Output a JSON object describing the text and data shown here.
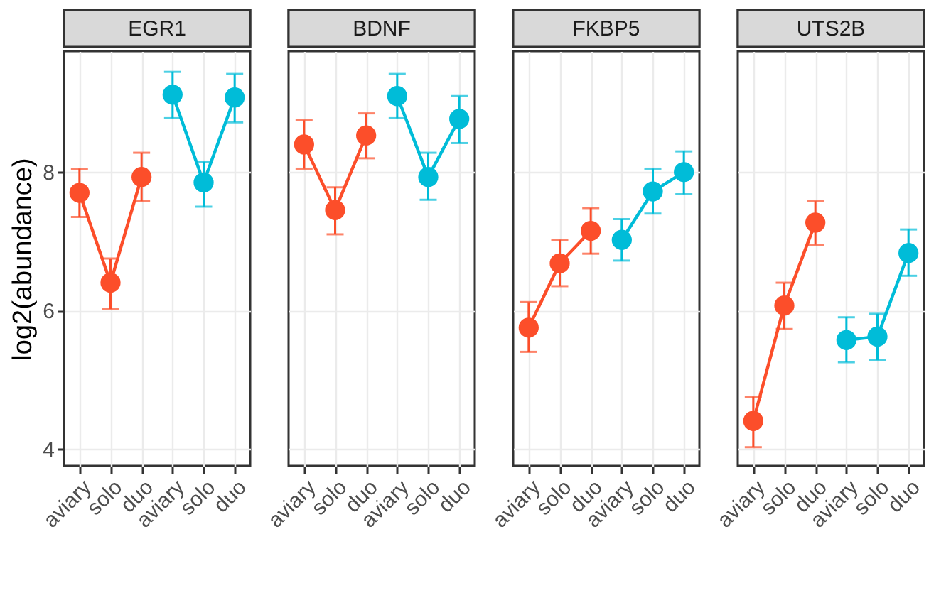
{
  "chart_data": [
    {
      "type": "line",
      "title": "EGR1",
      "ylabel": "log2(abundance)",
      "categories": [
        "aviary",
        "solo",
        "duo",
        "aviary",
        "solo",
        "duo"
      ],
      "ylim": [
        3.75,
        9.75
      ],
      "yticks": [
        4,
        6,
        8
      ],
      "grid": true,
      "marker": "circle",
      "line_style": "solid",
      "legend": false,
      "series": [
        {
          "color": "#fc4e2a",
          "values": [
            7.7,
            6.4,
            7.93,
            null,
            null,
            null
          ],
          "errors": [
            [
              7.35,
              8.05
            ],
            [
              6.02,
              6.75
            ],
            [
              7.58,
              8.28
            ],
            null,
            null,
            null
          ]
        },
        {
          "color": "#00bcd8",
          "values": [
            null,
            null,
            null,
            9.12,
            7.85,
            9.08
          ],
          "errors": [
            null,
            null,
            null,
            [
              8.78,
              9.45
            ],
            [
              7.5,
              8.15
            ],
            [
              8.72,
              9.42
            ]
          ]
        }
      ]
    },
    {
      "type": "line",
      "title": "BDNF",
      "categories": [
        "aviary",
        "solo",
        "duo",
        "aviary",
        "solo",
        "duo"
      ],
      "ylim": [
        3.75,
        9.75
      ],
      "yticks": [
        4,
        6,
        8
      ],
      "grid": true,
      "marker": "circle",
      "line_style": "solid",
      "legend": false,
      "tick_labels": "x",
      "series": [
        {
          "color": "#fc4e2a",
          "values": [
            8.4,
            7.45,
            8.53,
            null,
            null,
            null
          ],
          "errors": [
            [
              8.05,
              8.75
            ],
            [
              7.1,
              7.78
            ],
            [
              8.2,
              8.85
            ],
            null,
            null,
            null
          ]
        },
        {
          "color": "#00bcd8",
          "values": [
            null,
            null,
            null,
            9.1,
            7.93,
            8.77
          ],
          "errors": [
            null,
            null,
            null,
            [
              8.78,
              9.42
            ],
            [
              7.6,
              8.28
            ],
            [
              8.42,
              9.1
            ]
          ]
        }
      ]
    },
    {
      "type": "line",
      "title": "FKBP5",
      "categories": [
        "aviary",
        "solo",
        "duo",
        "aviary",
        "solo",
        "duo"
      ],
      "ylim": [
        3.75,
        9.75
      ],
      "yticks": [
        4,
        6,
        8
      ],
      "grid": true,
      "marker": "circle",
      "line_style": "solid",
      "legend": false,
      "tick_labels": "x",
      "series": [
        {
          "color": "#fc4e2a",
          "values": [
            5.75,
            6.68,
            7.15,
            null,
            null,
            null
          ],
          "errors": [
            [
              5.4,
              6.12
            ],
            [
              6.35,
              7.02
            ],
            [
              6.82,
              7.48
            ],
            null,
            null,
            null
          ]
        },
        {
          "color": "#00bcd8",
          "values": [
            null,
            null,
            null,
            7.02,
            7.72,
            8.0
          ],
          "errors": [
            null,
            null,
            null,
            [
              6.72,
              7.32
            ],
            [
              7.4,
              8.05
            ],
            [
              7.68,
              8.3
            ]
          ]
        }
      ]
    },
    {
      "type": "line",
      "title": "UTS2B",
      "categories": [
        "aviary",
        "solo",
        "duo",
        "aviary",
        "solo",
        "duo"
      ],
      "ylim": [
        3.75,
        9.75
      ],
      "yticks": [
        4,
        6,
        8
      ],
      "grid": true,
      "marker": "circle",
      "line_style": "solid",
      "legend": false,
      "tick_labels": "x",
      "series": [
        {
          "color": "#fc4e2a",
          "values": [
            4.4,
            6.07,
            7.27,
            null,
            null,
            null
          ],
          "errors": [
            [
              4.02,
              4.75
            ],
            [
              5.73,
              6.4
            ],
            [
              6.95,
              7.58
            ],
            null,
            null,
            null
          ]
        },
        {
          "color": "#00bcd8",
          "values": [
            null,
            null,
            null,
            5.57,
            5.62,
            6.83
          ],
          "errors": [
            null,
            null,
            null,
            [
              5.25,
              5.9
            ],
            [
              5.28,
              5.95
            ],
            [
              6.5,
              7.17
            ]
          ]
        }
      ]
    }
  ]
}
